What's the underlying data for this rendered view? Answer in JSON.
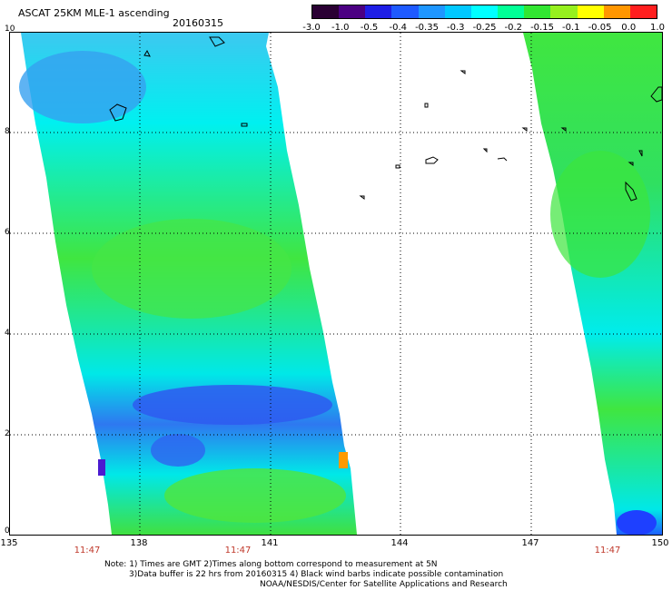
{
  "header": {
    "title": "ASCAT 25KM MLE-1 ascending",
    "date": "20160315"
  },
  "colorbar": {
    "labels": [
      "-3.0",
      "-1.0",
      "-0.5",
      "-0.4",
      "-0.35",
      "-0.3",
      "-0.25",
      "-0.2",
      "-0.15",
      "-0.1",
      "-0.05",
      "0.0",
      "1.0"
    ],
    "colors": [
      "#2a0033",
      "#4b0082",
      "#1e1ee6",
      "#1e5aff",
      "#1e96ff",
      "#00c8ff",
      "#00ffff",
      "#00ff96",
      "#32e632",
      "#96f01e",
      "#ffff00",
      "#ff9600",
      "#ff1e1e"
    ]
  },
  "axes": {
    "lat_labels": [
      "10",
      "8",
      "6",
      "4",
      "2",
      "0"
    ],
    "lon_labels": [
      "135",
      "138",
      "141",
      "144",
      "147",
      "150"
    ],
    "time_labels": [
      "11:47",
      "11:47",
      "11:47"
    ]
  },
  "notes": {
    "line1": "Note: 1) Times are GMT 2)Times along bottom correspond to measurement at 5N",
    "line2": "3)Data buffer is 22 hrs from 20160315 4) Black wind barbs indicate possible contamination",
    "line3": "NOAA/NESDIS/Center for Satellite Applications and Research"
  }
}
